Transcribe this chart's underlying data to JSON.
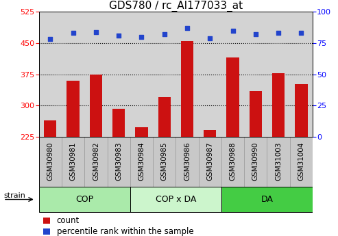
{
  "title": "GDS780 / rc_AI177033_at",
  "samples": [
    "GSM30980",
    "GSM30981",
    "GSM30982",
    "GSM30983",
    "GSM30984",
    "GSM30985",
    "GSM30986",
    "GSM30987",
    "GSM30988",
    "GSM30990",
    "GSM31003",
    "GSM31004"
  ],
  "counts": [
    265,
    360,
    375,
    293,
    248,
    320,
    455,
    242,
    415,
    335,
    378,
    352
  ],
  "percentiles": [
    78,
    83,
    84,
    81,
    80,
    82,
    87,
    79,
    85,
    82,
    83,
    83
  ],
  "groups": [
    {
      "label": "COP",
      "start": 0,
      "end": 3,
      "color": "#aaeaaa"
    },
    {
      "label": "COP x DA",
      "start": 4,
      "end": 7,
      "color": "#ccf5cc"
    },
    {
      "label": "DA",
      "start": 8,
      "end": 11,
      "color": "#44cc44"
    }
  ],
  "ylim_left": [
    225,
    525
  ],
  "ylim_right": [
    0,
    100
  ],
  "yticks_left": [
    225,
    300,
    375,
    450,
    525
  ],
  "yticks_right": [
    0,
    25,
    50,
    75,
    100
  ],
  "bar_color": "#cc1111",
  "dot_color": "#2244cc",
  "plot_bg_color": "#d3d3d3",
  "label_bg_color": "#c8c8c8",
  "title_fontsize": 11,
  "axis_fontsize": 8,
  "tick_fontsize": 8,
  "label_fontsize": 7.5,
  "group_fontsize": 9,
  "legend_fontsize": 8.5
}
